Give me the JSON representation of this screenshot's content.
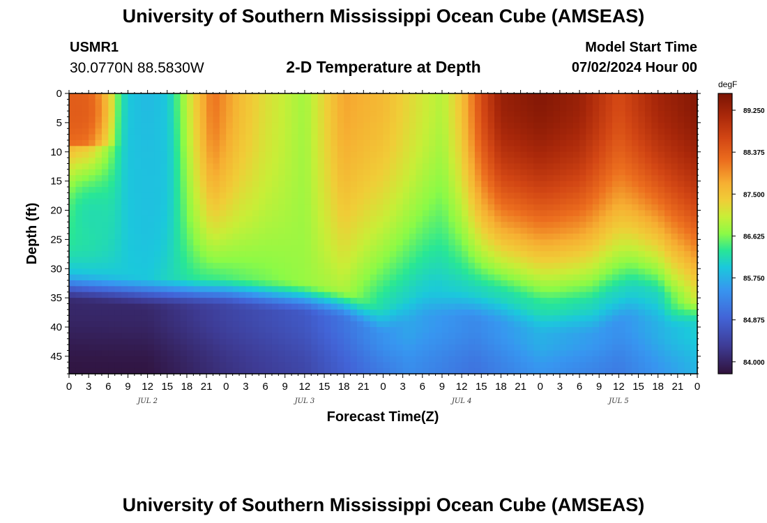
{
  "header": {
    "title": "University of Southern Mississippi Ocean Cube (AMSEAS)",
    "station_id": "USMR1",
    "coordinates": "30.0770N  88.5830W",
    "subtitle": "2-D Temperature at Depth",
    "start_label": "Model Start Time",
    "start_value": "07/02/2024 Hour 00"
  },
  "footer": {
    "title": "University of Southern Mississippi Ocean Cube (AMSEAS)"
  },
  "chart_data": {
    "type": "heatmap",
    "title": "2-D Temperature at Depth",
    "xlabel": "Forecast Time(Z)",
    "ylabel": "Depth (ft)",
    "x_ticks": [
      "0",
      "3",
      "6",
      "9",
      "12",
      "15",
      "18",
      "21",
      "0",
      "3",
      "6",
      "9",
      "12",
      "15",
      "18",
      "21",
      "0",
      "3",
      "6",
      "9",
      "12",
      "15",
      "18",
      "21",
      "0",
      "3",
      "6",
      "9",
      "12",
      "15",
      "18",
      "21",
      "0"
    ],
    "x_range_hours": [
      0,
      96
    ],
    "day_labels": [
      {
        "label": "JUL 2",
        "hour": 12
      },
      {
        "label": "JUL 3",
        "hour": 36
      },
      {
        "label": "JUL 4",
        "hour": 60
      },
      {
        "label": "JUL 5",
        "hour": 84
      }
    ],
    "y_ticks": [
      0,
      5,
      10,
      15,
      20,
      25,
      30,
      35,
      40,
      45
    ],
    "y_range_ft": [
      0,
      48
    ],
    "colorbar": {
      "unit": "degF",
      "min": 83.75,
      "max": 89.6,
      "tick_labels": [
        "84.000",
        "84.875",
        "85.750",
        "86.625",
        "87.500",
        "88.375",
        "89.250"
      ],
      "tick_values": [
        84.0,
        84.875,
        85.75,
        86.625,
        87.5,
        88.375,
        89.25
      ]
    },
    "surface_layer_depth_ft": [
      {
        "hour": 0,
        "depth": 30
      },
      {
        "hour": 12,
        "depth": 31
      },
      {
        "hour": 24,
        "depth": 31
      },
      {
        "hour": 36,
        "depth": 32
      },
      {
        "hour": 42,
        "depth": 33
      },
      {
        "hour": 48,
        "depth": 36
      },
      {
        "hour": 54,
        "depth": 33
      },
      {
        "hour": 60,
        "depth": 33
      },
      {
        "hour": 66,
        "depth": 34
      },
      {
        "hour": 72,
        "depth": 36
      },
      {
        "hour": 80,
        "depth": 36
      },
      {
        "hour": 86,
        "depth": 33
      },
      {
        "hour": 92,
        "depth": 35
      },
      {
        "hour": 96,
        "depth": 34
      }
    ],
    "surface_temperature_degF": [
      {
        "hour": 0,
        "value": 88.3
      },
      {
        "hour": 3,
        "value": 88.2
      },
      {
        "hour": 6,
        "value": 87.2
      },
      {
        "hour": 9,
        "value": 86.0
      },
      {
        "hour": 12,
        "value": 85.8
      },
      {
        "hour": 15,
        "value": 86.0
      },
      {
        "hour": 18,
        "value": 87.0
      },
      {
        "hour": 22,
        "value": 88.2
      },
      {
        "hour": 26,
        "value": 87.6
      },
      {
        "hour": 30,
        "value": 87.2
      },
      {
        "hour": 36,
        "value": 86.8
      },
      {
        "hour": 42,
        "value": 87.8
      },
      {
        "hour": 48,
        "value": 87.6
      },
      {
        "hour": 54,
        "value": 87.1
      },
      {
        "hour": 57,
        "value": 86.9
      },
      {
        "hour": 60,
        "value": 87.5
      },
      {
        "hour": 63,
        "value": 88.6
      },
      {
        "hour": 66,
        "value": 89.3
      },
      {
        "hour": 72,
        "value": 89.5
      },
      {
        "hour": 78,
        "value": 89.3
      },
      {
        "hour": 84,
        "value": 88.6
      },
      {
        "hour": 90,
        "value": 89.2
      },
      {
        "hour": 96,
        "value": 89.5
      }
    ],
    "surface_layer_bottom_temperature_degF": [
      {
        "hour": 0,
        "value": 86.0
      },
      {
        "hour": 12,
        "value": 86.0
      },
      {
        "hour": 20,
        "value": 86.4
      },
      {
        "hour": 30,
        "value": 86.6
      },
      {
        "hour": 42,
        "value": 86.9
      },
      {
        "hour": 48,
        "value": 86.2
      },
      {
        "hour": 56,
        "value": 86.0
      },
      {
        "hour": 66,
        "value": 86.2
      },
      {
        "hour": 74,
        "value": 86.3
      },
      {
        "hour": 82,
        "value": 86.1
      },
      {
        "hour": 90,
        "value": 86.1
      },
      {
        "hour": 96,
        "value": 87.2
      }
    ],
    "bottom_temperature_degF": [
      {
        "hour": 0,
        "value": 83.9
      },
      {
        "hour": 12,
        "value": 83.9
      },
      {
        "hour": 24,
        "value": 84.3
      },
      {
        "hour": 36,
        "value": 84.6
      },
      {
        "hour": 46,
        "value": 85.2
      },
      {
        "hour": 52,
        "value": 85.5
      },
      {
        "hour": 62,
        "value": 85.2
      },
      {
        "hour": 72,
        "value": 85.6
      },
      {
        "hour": 84,
        "value": 85.3
      },
      {
        "hour": 96,
        "value": 85.9
      }
    ],
    "features": [
      {
        "type": "warm-surface-pool",
        "center_hour": 2,
        "center_depth_ft": 4,
        "half_width_hours": 5,
        "half_depth_ft": 6,
        "peak_degF": 88.3
      },
      {
        "type": "cool-column",
        "center_hour": 12,
        "center_depth_ft": 15,
        "half_width_hours": 4,
        "half_depth_ft": 15,
        "min_degF": 85.9
      },
      {
        "type": "cool-upper-left",
        "center_hour": 3,
        "center_depth_ft": 20,
        "half_width_hours": 6,
        "half_depth_ft": 10,
        "min_degF": 86.0
      }
    ]
  }
}
